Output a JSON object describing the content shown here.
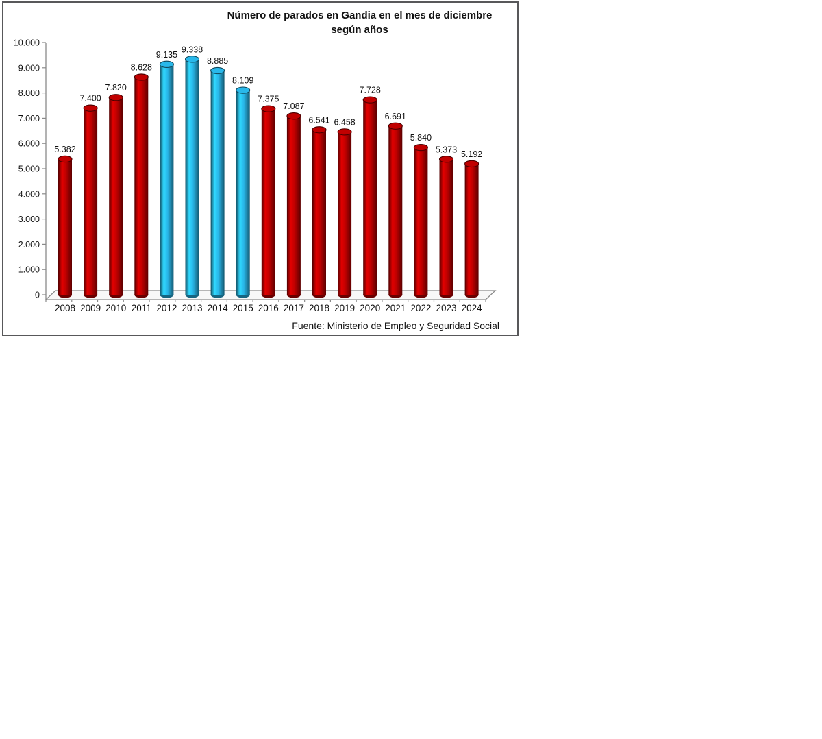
{
  "chart_data": {
    "type": "bar",
    "style": "3d-cylinder",
    "title": "Número de parados en Gandia en el mes de diciembre según años",
    "title_lines": [
      "Número de parados en Gandia en el mes de diciembre",
      "según años"
    ],
    "source": "Fuente: Ministerio de Empleo y Seguridad Social",
    "categories": [
      "2008",
      "2009",
      "2010",
      "2011",
      "2012",
      "2013",
      "2014",
      "2015",
      "2016",
      "2017",
      "2018",
      "2019",
      "2020",
      "2021",
      "2022",
      "2023",
      "2024"
    ],
    "values": [
      5382,
      7400,
      7820,
      8628,
      9135,
      9338,
      8885,
      8109,
      7375,
      7087,
      6541,
      6458,
      7728,
      6691,
      5840,
      5373,
      5192
    ],
    "value_labels": [
      "5.382",
      "7.400",
      "7.820",
      "8.628",
      "9.135",
      "9.338",
      "8.885",
      "8.109",
      "7.375",
      "7.087",
      "6.541",
      "6.458",
      "7.728",
      "6.691",
      "5.840",
      "5.373",
      "5.192"
    ],
    "highlight_categories": [
      "2012",
      "2013",
      "2014",
      "2015"
    ],
    "colors": {
      "bar_default": "#C00000",
      "bar_highlight": "#29B8EA",
      "axis": "#8a8a8a",
      "text": "#111111",
      "floor_fill": "#f8f8f8"
    },
    "y_axis": {
      "min": 0,
      "max": 10000,
      "step": 1000,
      "tick_labels": [
        "0",
        "1.000",
        "2.000",
        "3.000",
        "4.000",
        "5.000",
        "6.000",
        "7.000",
        "8.000",
        "9.000",
        "10.000"
      ]
    },
    "grid": false,
    "legend": null
  }
}
